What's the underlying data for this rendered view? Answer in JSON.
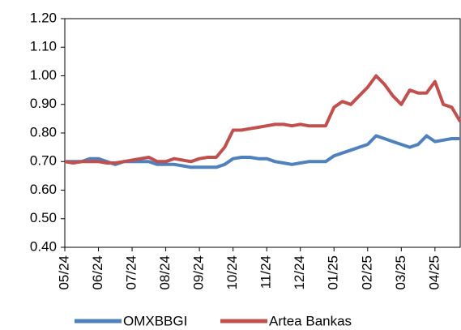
{
  "chart_data": {
    "type": "line",
    "categories": [
      "05/24",
      null,
      null,
      null,
      "06/24",
      null,
      null,
      null,
      "07/24",
      null,
      null,
      null,
      "08/24",
      null,
      null,
      null,
      "09/24",
      null,
      null,
      null,
      "10/24",
      null,
      null,
      null,
      "11/24",
      null,
      null,
      null,
      "12/24",
      null,
      null,
      null,
      "01/25",
      null,
      null,
      null,
      "02/25",
      null,
      null,
      null,
      "03/25",
      null,
      null,
      null,
      "04/25",
      null,
      null,
      null
    ],
    "series": [
      {
        "name": "OMXBBGI",
        "color": "#4f81bd",
        "values": [
          0.7,
          0.7,
          0.7,
          0.71,
          0.71,
          0.7,
          0.69,
          0.7,
          0.7,
          0.7,
          0.7,
          0.69,
          0.69,
          0.69,
          0.685,
          0.68,
          0.68,
          0.68,
          0.68,
          0.69,
          0.71,
          0.715,
          0.715,
          0.71,
          0.71,
          0.7,
          0.695,
          0.69,
          0.695,
          0.7,
          0.7,
          0.7,
          0.72,
          0.73,
          0.74,
          0.75,
          0.76,
          0.79,
          0.78,
          0.77,
          0.76,
          0.75,
          0.76,
          0.79,
          0.77,
          0.775,
          0.78,
          0.78
        ]
      },
      {
        "name": "Artea Bankas",
        "color": "#c0504d",
        "values": [
          0.7,
          0.695,
          0.7,
          0.7,
          0.7,
          0.695,
          0.695,
          0.7,
          0.705,
          0.71,
          0.715,
          0.7,
          0.7,
          0.71,
          0.705,
          0.7,
          0.71,
          0.715,
          0.715,
          0.75,
          0.81,
          0.81,
          0.815,
          0.82,
          0.825,
          0.83,
          0.83,
          0.825,
          0.83,
          0.825,
          0.825,
          0.825,
          0.89,
          0.91,
          0.9,
          0.93,
          0.96,
          1.0,
          0.97,
          0.93,
          0.9,
          0.95,
          0.94,
          0.94,
          0.98,
          0.9,
          0.89,
          0.84
        ]
      }
    ],
    "ylim": [
      0.4,
      1.2
    ],
    "yticks": [
      {
        "value": 0.4,
        "label": "0.40"
      },
      {
        "value": 0.5,
        "label": "0.50"
      },
      {
        "value": 0.6,
        "label": "0.60"
      },
      {
        "value": 0.7,
        "label": "0.70"
      },
      {
        "value": 0.8,
        "label": "0.80"
      },
      {
        "value": 0.9,
        "label": "0.90"
      },
      {
        "value": 1.0,
        "label": "1.00"
      },
      {
        "value": 1.1,
        "label": "1.10"
      },
      {
        "value": 1.2,
        "label": "1.20"
      }
    ],
    "grid": false,
    "legend": "bottom"
  }
}
